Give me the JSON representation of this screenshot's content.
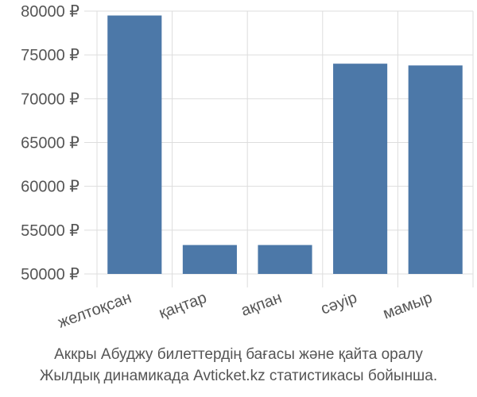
{
  "chart_data": {
    "type": "bar",
    "caption": [
      "Аккры Абуджу билеттердің бағасы және қайта оралу",
      "Жылдық динамикада Avticket.kz статистикасы бойынша."
    ],
    "categories": [
      "желтоқсан",
      "қаңтар",
      "ақпан",
      "сәуір",
      "мамыр"
    ],
    "values": [
      79500,
      53300,
      53300,
      74000,
      73800
    ],
    "color": "#4c78a8",
    "ylim": [
      50000,
      80000
    ],
    "yticks": [
      {
        "value": 50000,
        "label": "50000 ₽"
      },
      {
        "value": 55000,
        "label": "55000 ₽"
      },
      {
        "value": 60000,
        "label": "60000 ₽"
      },
      {
        "value": 65000,
        "label": "65000 ₽"
      },
      {
        "value": 70000,
        "label": "70000 ₽"
      },
      {
        "value": 75000,
        "label": "75000 ₽"
      },
      {
        "value": 80000,
        "label": "80000 ₽"
      }
    ],
    "grid": true
  }
}
